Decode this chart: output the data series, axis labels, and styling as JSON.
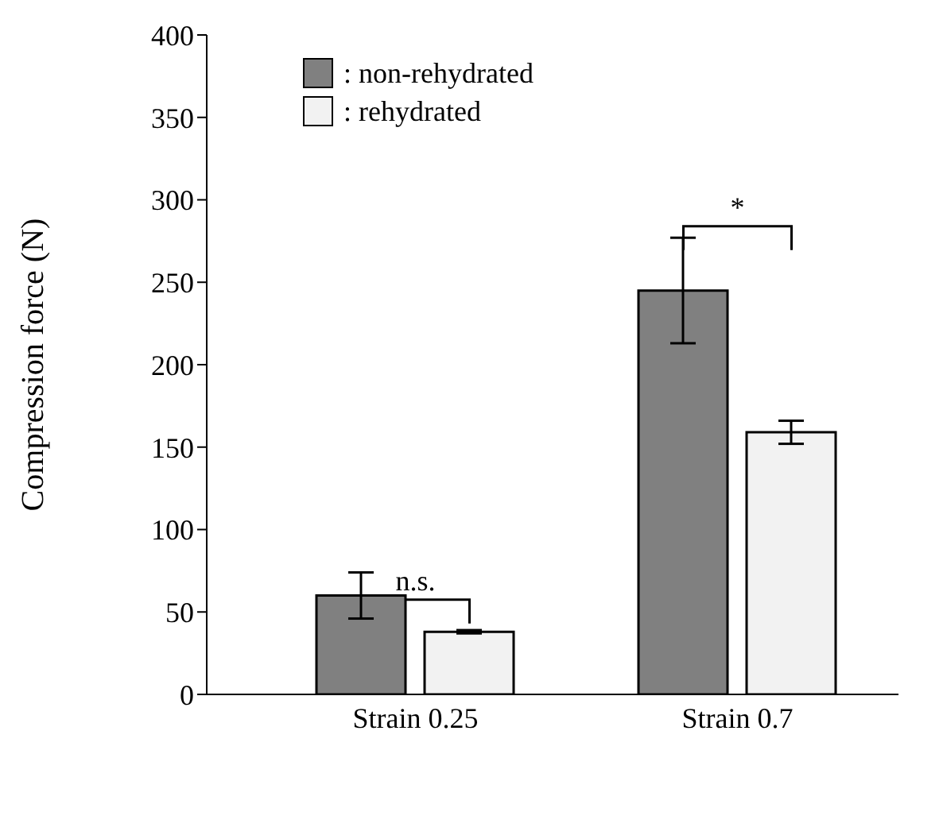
{
  "chart_data": {
    "type": "bar",
    "ylabel": "Compression force (N)",
    "categories": [
      "Strain 0.25",
      "Strain 0.7"
    ],
    "series": [
      {
        "name": ": non-rehydrated",
        "color": "#808080",
        "values": [
          60,
          245
        ],
        "errors": [
          14,
          32
        ]
      },
      {
        "name": ": rehydrated",
        "color": "#f2f2f2",
        "values": [
          38,
          159
        ],
        "errors": [
          1,
          7
        ]
      }
    ],
    "ylim": [
      0,
      400
    ],
    "yticks": [
      0,
      50,
      100,
      150,
      200,
      250,
      300,
      350,
      400
    ],
    "grid": false,
    "legend": "top left",
    "annotations": [
      "n.s.",
      "*"
    ]
  }
}
